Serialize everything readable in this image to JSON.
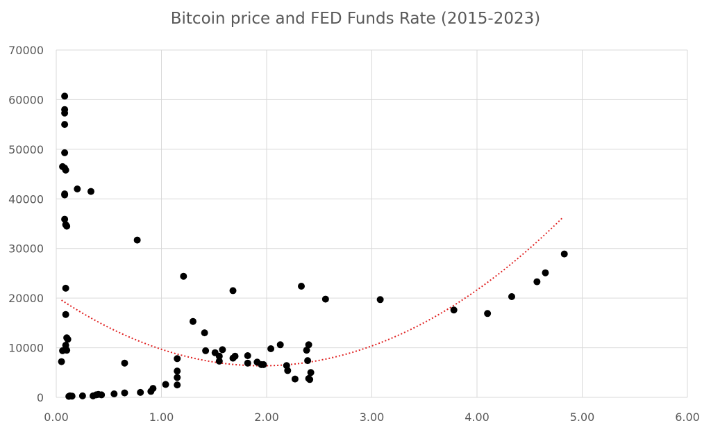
{
  "chart_data": {
    "type": "scatter",
    "title": "Bitcoin price and FED Funds Rate (2015-2023)",
    "xlabel": "",
    "ylabel": "",
    "xlim": [
      0,
      6
    ],
    "ylim": [
      0,
      70000
    ],
    "x_ticks": [
      "0.00",
      "1.00",
      "2.00",
      "3.00",
      "4.00",
      "5.00",
      "6.00"
    ],
    "y_ticks": [
      "0",
      "10000",
      "20000",
      "30000",
      "40000",
      "50000",
      "60000",
      "70000"
    ],
    "grid": true,
    "legend": "none",
    "marker_color": "#000000",
    "trendline": {
      "type": "polynomial-2",
      "style": "dotted",
      "color": "#e02020",
      "x_range": [
        0.05,
        4.82
      ],
      "coefficients": [
        20300,
        -14264,
        3650
      ]
    },
    "series": [
      {
        "points": [
          [
            0.08,
            60700
          ],
          [
            0.08,
            58000
          ],
          [
            0.08,
            57300
          ],
          [
            0.08,
            55000
          ],
          [
            0.08,
            49300
          ],
          [
            0.06,
            46500
          ],
          [
            0.08,
            46200
          ],
          [
            0.09,
            45800
          ],
          [
            0.08,
            41000
          ],
          [
            0.08,
            40800
          ],
          [
            0.08,
            35900
          ],
          [
            0.09,
            34800
          ],
          [
            0.1,
            34500
          ],
          [
            0.09,
            22000
          ],
          [
            0.09,
            16700
          ],
          [
            0.1,
            12000
          ],
          [
            0.11,
            11700
          ],
          [
            0.09,
            10500
          ],
          [
            0.06,
            9400
          ],
          [
            0.1,
            9500
          ],
          [
            0.05,
            7200
          ],
          [
            0.12,
            200
          ],
          [
            0.13,
            300
          ],
          [
            0.15,
            250
          ],
          [
            0.2,
            42000
          ],
          [
            0.33,
            41500
          ],
          [
            0.25,
            300
          ],
          [
            0.35,
            300
          ],
          [
            0.38,
            500
          ],
          [
            0.4,
            600
          ],
          [
            0.43,
            500
          ],
          [
            0.55,
            700
          ],
          [
            0.65,
            900
          ],
          [
            0.65,
            6900
          ],
          [
            0.77,
            31700
          ],
          [
            0.8,
            1000
          ],
          [
            0.9,
            1200
          ],
          [
            0.92,
            1800
          ],
          [
            1.04,
            2600
          ],
          [
            1.15,
            7800
          ],
          [
            1.15,
            5300
          ],
          [
            1.15,
            4000
          ],
          [
            1.15,
            2500
          ],
          [
            1.21,
            24400
          ],
          [
            1.3,
            15300
          ],
          [
            1.41,
            13000
          ],
          [
            1.42,
            9400
          ],
          [
            1.51,
            9000
          ],
          [
            1.55,
            8300
          ],
          [
            1.55,
            7300
          ],
          [
            1.58,
            9600
          ],
          [
            1.68,
            21500
          ],
          [
            1.68,
            7900
          ],
          [
            1.7,
            8300
          ],
          [
            1.82,
            8400
          ],
          [
            1.82,
            6900
          ],
          [
            1.91,
            7100
          ],
          [
            1.95,
            6600
          ],
          [
            1.97,
            6600
          ],
          [
            2.04,
            9800
          ],
          [
            2.13,
            10600
          ],
          [
            2.19,
            6400
          ],
          [
            2.2,
            5400
          ],
          [
            2.27,
            3700
          ],
          [
            2.33,
            22400
          ],
          [
            2.38,
            9500
          ],
          [
            2.4,
            10600
          ],
          [
            2.39,
            7400
          ],
          [
            2.42,
            5000
          ],
          [
            2.4,
            3800
          ],
          [
            2.41,
            3600
          ],
          [
            2.56,
            19800
          ],
          [
            3.08,
            19700
          ],
          [
            3.78,
            17600
          ],
          [
            4.1,
            16900
          ],
          [
            4.33,
            20300
          ],
          [
            4.57,
            23300
          ],
          [
            4.65,
            25100
          ],
          [
            4.83,
            28900
          ]
        ]
      }
    ]
  }
}
